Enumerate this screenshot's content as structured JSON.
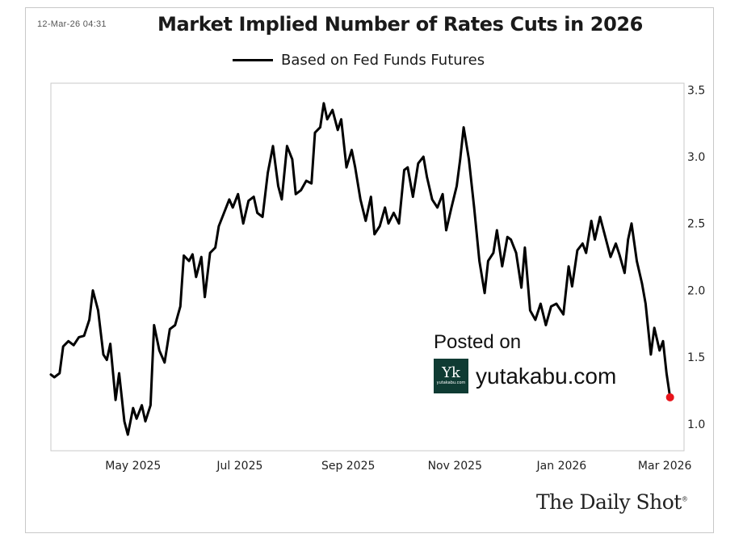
{
  "timestamp": "12-Mar-26 04:31",
  "chart_data": {
    "type": "line",
    "title": "Market Implied Number of Rates Cuts in 2026",
    "legend": [
      "Based on Fed Funds Futures"
    ],
    "xlabel": "",
    "ylabel": "",
    "x_range": [
      "2025-03-15",
      "2026-03-12"
    ],
    "ylim": [
      0.8,
      3.55
    ],
    "y_ticks": [
      "1.0",
      "1.5",
      "2.0",
      "2.5",
      "3.0",
      "3.5"
    ],
    "x_tick_labels": [
      {
        "label": "May 2025",
        "date": "2025-05-01"
      },
      {
        "label": "Jul 2025",
        "date": "2025-07-01"
      },
      {
        "label": "Sep 2025",
        "date": "2025-09-01"
      },
      {
        "label": "Nov 2025",
        "date": "2025-11-01"
      },
      {
        "label": "Jan 2026",
        "date": "2026-01-01"
      },
      {
        "label": "Mar 2026",
        "date": "2026-03-01"
      }
    ],
    "series": [
      {
        "name": "Based on Fed Funds Futures",
        "color": "#000000",
        "points": [
          [
            "2025-03-15",
            1.37
          ],
          [
            "2025-03-17",
            1.35
          ],
          [
            "2025-03-20",
            1.38
          ],
          [
            "2025-03-22",
            1.58
          ],
          [
            "2025-03-25",
            1.62
          ],
          [
            "2025-03-28",
            1.59
          ],
          [
            "2025-03-31",
            1.65
          ],
          [
            "2025-04-03",
            1.66
          ],
          [
            "2025-04-06",
            1.78
          ],
          [
            "2025-04-08",
            2.0
          ],
          [
            "2025-04-11",
            1.85
          ],
          [
            "2025-04-14",
            1.52
          ],
          [
            "2025-04-16",
            1.48
          ],
          [
            "2025-04-18",
            1.6
          ],
          [
            "2025-04-21",
            1.18
          ],
          [
            "2025-04-23",
            1.38
          ],
          [
            "2025-04-26",
            1.02
          ],
          [
            "2025-04-28",
            0.92
          ],
          [
            "2025-05-01",
            1.12
          ],
          [
            "2025-05-03",
            1.04
          ],
          [
            "2025-05-06",
            1.14
          ],
          [
            "2025-05-08",
            1.02
          ],
          [
            "2025-05-11",
            1.14
          ],
          [
            "2025-05-13",
            1.74
          ],
          [
            "2025-05-16",
            1.55
          ],
          [
            "2025-05-19",
            1.46
          ],
          [
            "2025-05-22",
            1.71
          ],
          [
            "2025-05-25",
            1.74
          ],
          [
            "2025-05-28",
            1.88
          ],
          [
            "2025-05-30",
            2.26
          ],
          [
            "2025-06-02",
            2.22
          ],
          [
            "2025-06-04",
            2.27
          ],
          [
            "2025-06-06",
            2.1
          ],
          [
            "2025-06-09",
            2.25
          ],
          [
            "2025-06-11",
            1.95
          ],
          [
            "2025-06-14",
            2.28
          ],
          [
            "2025-06-17",
            2.32
          ],
          [
            "2025-06-19",
            2.48
          ],
          [
            "2025-06-22",
            2.58
          ],
          [
            "2025-06-25",
            2.68
          ],
          [
            "2025-06-27",
            2.62
          ],
          [
            "2025-06-30",
            2.72
          ],
          [
            "2025-07-03",
            2.5
          ],
          [
            "2025-07-06",
            2.67
          ],
          [
            "2025-07-09",
            2.7
          ],
          [
            "2025-07-11",
            2.58
          ],
          [
            "2025-07-14",
            2.55
          ],
          [
            "2025-07-17",
            2.88
          ],
          [
            "2025-07-20",
            3.08
          ],
          [
            "2025-07-23",
            2.78
          ],
          [
            "2025-07-25",
            2.68
          ],
          [
            "2025-07-28",
            3.08
          ],
          [
            "2025-07-31",
            2.98
          ],
          [
            "2025-08-02",
            2.72
          ],
          [
            "2025-08-05",
            2.75
          ],
          [
            "2025-08-08",
            2.82
          ],
          [
            "2025-08-11",
            2.8
          ],
          [
            "2025-08-13",
            3.18
          ],
          [
            "2025-08-16",
            3.22
          ],
          [
            "2025-08-18",
            3.4
          ],
          [
            "2025-08-20",
            3.28
          ],
          [
            "2025-08-23",
            3.35
          ],
          [
            "2025-08-26",
            3.2
          ],
          [
            "2025-08-28",
            3.28
          ],
          [
            "2025-08-31",
            2.92
          ],
          [
            "2025-09-03",
            3.05
          ],
          [
            "2025-09-05",
            2.92
          ],
          [
            "2025-09-08",
            2.68
          ],
          [
            "2025-09-11",
            2.52
          ],
          [
            "2025-09-14",
            2.7
          ],
          [
            "2025-09-16",
            2.42
          ],
          [
            "2025-09-19",
            2.48
          ],
          [
            "2025-09-22",
            2.62
          ],
          [
            "2025-09-24",
            2.5
          ],
          [
            "2025-09-27",
            2.58
          ],
          [
            "2025-09-30",
            2.5
          ],
          [
            "2025-10-03",
            2.9
          ],
          [
            "2025-10-05",
            2.92
          ],
          [
            "2025-10-08",
            2.7
          ],
          [
            "2025-10-11",
            2.95
          ],
          [
            "2025-10-14",
            3.0
          ],
          [
            "2025-10-16",
            2.85
          ],
          [
            "2025-10-19",
            2.68
          ],
          [
            "2025-10-22",
            2.62
          ],
          [
            "2025-10-25",
            2.72
          ],
          [
            "2025-10-27",
            2.45
          ],
          [
            "2025-10-30",
            2.62
          ],
          [
            "2025-11-02",
            2.78
          ],
          [
            "2025-11-04",
            2.98
          ],
          [
            "2025-11-06",
            3.22
          ],
          [
            "2025-11-09",
            2.98
          ],
          [
            "2025-11-12",
            2.62
          ],
          [
            "2025-11-15",
            2.22
          ],
          [
            "2025-11-18",
            1.98
          ],
          [
            "2025-11-20",
            2.22
          ],
          [
            "2025-11-23",
            2.28
          ],
          [
            "2025-11-25",
            2.45
          ],
          [
            "2025-11-28",
            2.18
          ],
          [
            "2025-12-01",
            2.4
          ],
          [
            "2025-12-03",
            2.38
          ],
          [
            "2025-12-06",
            2.28
          ],
          [
            "2025-12-09",
            2.02
          ],
          [
            "2025-12-11",
            2.32
          ],
          [
            "2025-12-14",
            1.85
          ],
          [
            "2025-12-17",
            1.78
          ],
          [
            "2025-12-20",
            1.9
          ],
          [
            "2025-12-23",
            1.74
          ],
          [
            "2025-12-26",
            1.88
          ],
          [
            "2025-12-29",
            1.9
          ],
          [
            "2026-01-02",
            1.82
          ],
          [
            "2026-01-05",
            2.18
          ],
          [
            "2026-01-07",
            2.03
          ],
          [
            "2026-01-10",
            2.3
          ],
          [
            "2026-01-13",
            2.35
          ],
          [
            "2026-01-15",
            2.28
          ],
          [
            "2026-01-18",
            2.52
          ],
          [
            "2026-01-20",
            2.38
          ],
          [
            "2026-01-23",
            2.55
          ],
          [
            "2026-01-26",
            2.4
          ],
          [
            "2026-01-29",
            2.25
          ],
          [
            "2026-02-01",
            2.35
          ],
          [
            "2026-02-03",
            2.27
          ],
          [
            "2026-02-06",
            2.13
          ],
          [
            "2026-02-08",
            2.38
          ],
          [
            "2026-02-10",
            2.5
          ],
          [
            "2026-02-13",
            2.22
          ],
          [
            "2026-02-16",
            2.05
          ],
          [
            "2026-02-18",
            1.9
          ],
          [
            "2026-02-21",
            1.52
          ],
          [
            "2026-02-23",
            1.72
          ],
          [
            "2026-02-26",
            1.55
          ],
          [
            "2026-02-28",
            1.62
          ],
          [
            "2026-03-02",
            1.38
          ],
          [
            "2026-03-04",
            1.2
          ]
        ]
      }
    ],
    "highlight_point": {
      "date": "2026-03-04",
      "value": 1.2,
      "color": "#e8141b"
    }
  },
  "watermark": {
    "posted_label": "Posted on",
    "logo_mark": "Yk",
    "logo_caption": "yutakabu.com",
    "site": "yutakabu.com"
  },
  "brand": "The Daily Shot",
  "brand_mark": "®"
}
